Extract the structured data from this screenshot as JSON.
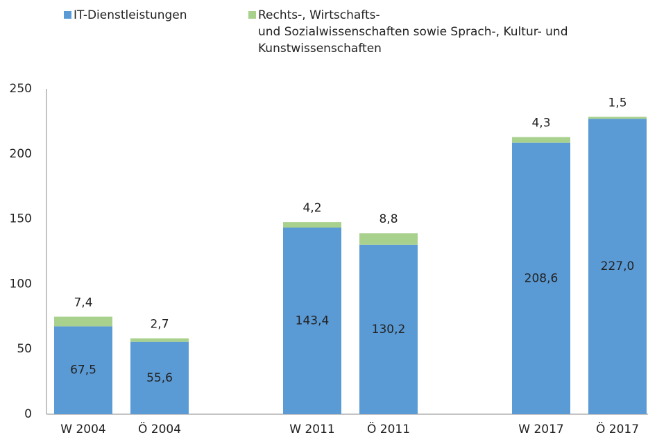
{
  "chart_data": {
    "type": "stacked_bar",
    "categories": [
      "W 2004",
      "Ö 2004",
      null,
      "W 2011",
      "Ö 2011",
      null,
      "W 2017",
      "Ö 2017"
    ],
    "series": [
      {
        "name": "IT-Dienstleistungen",
        "color": "#5b9bd5",
        "values": [
          67.5,
          55.6,
          null,
          143.4,
          130.2,
          null,
          208.6,
          227.0
        ],
        "value_labels": [
          "67,5",
          "55,6",
          null,
          "143,4",
          "130,2",
          null,
          "208,6",
          "227,0"
        ]
      },
      {
        "name": "Rechts-, Wirtschafts-\nund Sozialwissenschaften sowie Sprach-, Kultur- und\nKunstwissenschaften",
        "color": "#a9d18e",
        "values": [
          7.4,
          2.7,
          null,
          4.2,
          8.8,
          null,
          4.3,
          1.5
        ],
        "value_labels": [
          "7,4",
          "2,7",
          null,
          "4,2",
          "8,8",
          null,
          "4,3",
          "1,5"
        ]
      }
    ],
    "ylim": [
      0,
      250
    ],
    "yticks": [
      0,
      50,
      100,
      150,
      200,
      250
    ],
    "grid": false,
    "legend": "top"
  }
}
